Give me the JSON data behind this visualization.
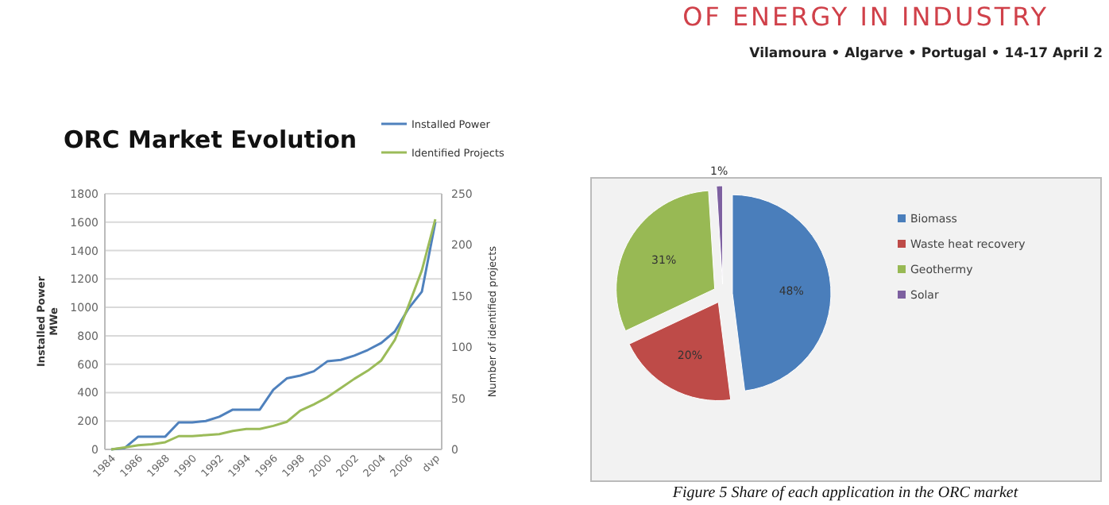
{
  "chart_data": [
    {
      "type": "line",
      "title": "ORC Market Evolution",
      "ylabel": "Installed Power\nMWe",
      "y2label": "Number of identified projects",
      "annotations": [
        "OF ENERGY IN INDUSTRY",
        "Vilamoura • Algarve • Portugal • 14-17 April 2"
      ],
      "categories": [
        "1984",
        null,
        "1986",
        null,
        "1988",
        null,
        "1990",
        null,
        "1992",
        null,
        "1994",
        null,
        "1996",
        null,
        "1998",
        null,
        "2000",
        null,
        "2002",
        null,
        "2004",
        null,
        "2006",
        null,
        "dvp"
      ],
      "series": [
        {
          "name": "Installed Power",
          "color": "#4f81bd",
          "values": [
            0,
            10,
            90,
            90,
            90,
            190,
            190,
            200,
            230,
            280,
            280,
            280,
            420,
            500,
            520,
            550,
            620,
            630,
            660,
            700,
            750,
            830,
            990,
            1110,
            1600
          ]
        },
        {
          "name": "Identified Projects",
          "color": "#9bbb59",
          "axis": "y2",
          "values": [
            0,
            2,
            4,
            5,
            7,
            13,
            13,
            14,
            15,
            18,
            20,
            20,
            23,
            27,
            38,
            44,
            51,
            60,
            69,
            77,
            87,
            107,
            140,
            175,
            225
          ]
        }
      ],
      "ylim": [
        0,
        1800
      ],
      "yticks": [
        0,
        200,
        400,
        600,
        800,
        1000,
        1200,
        1400,
        1600,
        1800
      ],
      "y2lim": [
        0,
        250
      ],
      "y2ticks": [
        0,
        50,
        100,
        150,
        200,
        250
      ],
      "grid": "y",
      "legend": "top right",
      "marker": "none",
      "line_style": "solid"
    },
    {
      "type": "pie",
      "annotations": [
        "Figure 5 Share of each application in the ORC market"
      ],
      "categories": [
        "Biomass",
        "Waste heat recovery",
        "Geothermy",
        "Solar"
      ],
      "values": [
        48,
        20,
        31,
        1
      ],
      "colors": [
        "#4a7ebb",
        "#be4b48",
        "#98b954",
        "#7d60a0"
      ],
      "value_labels": [
        "48%",
        "20%",
        "31%",
        "1%"
      ],
      "legend": "right"
    }
  ]
}
